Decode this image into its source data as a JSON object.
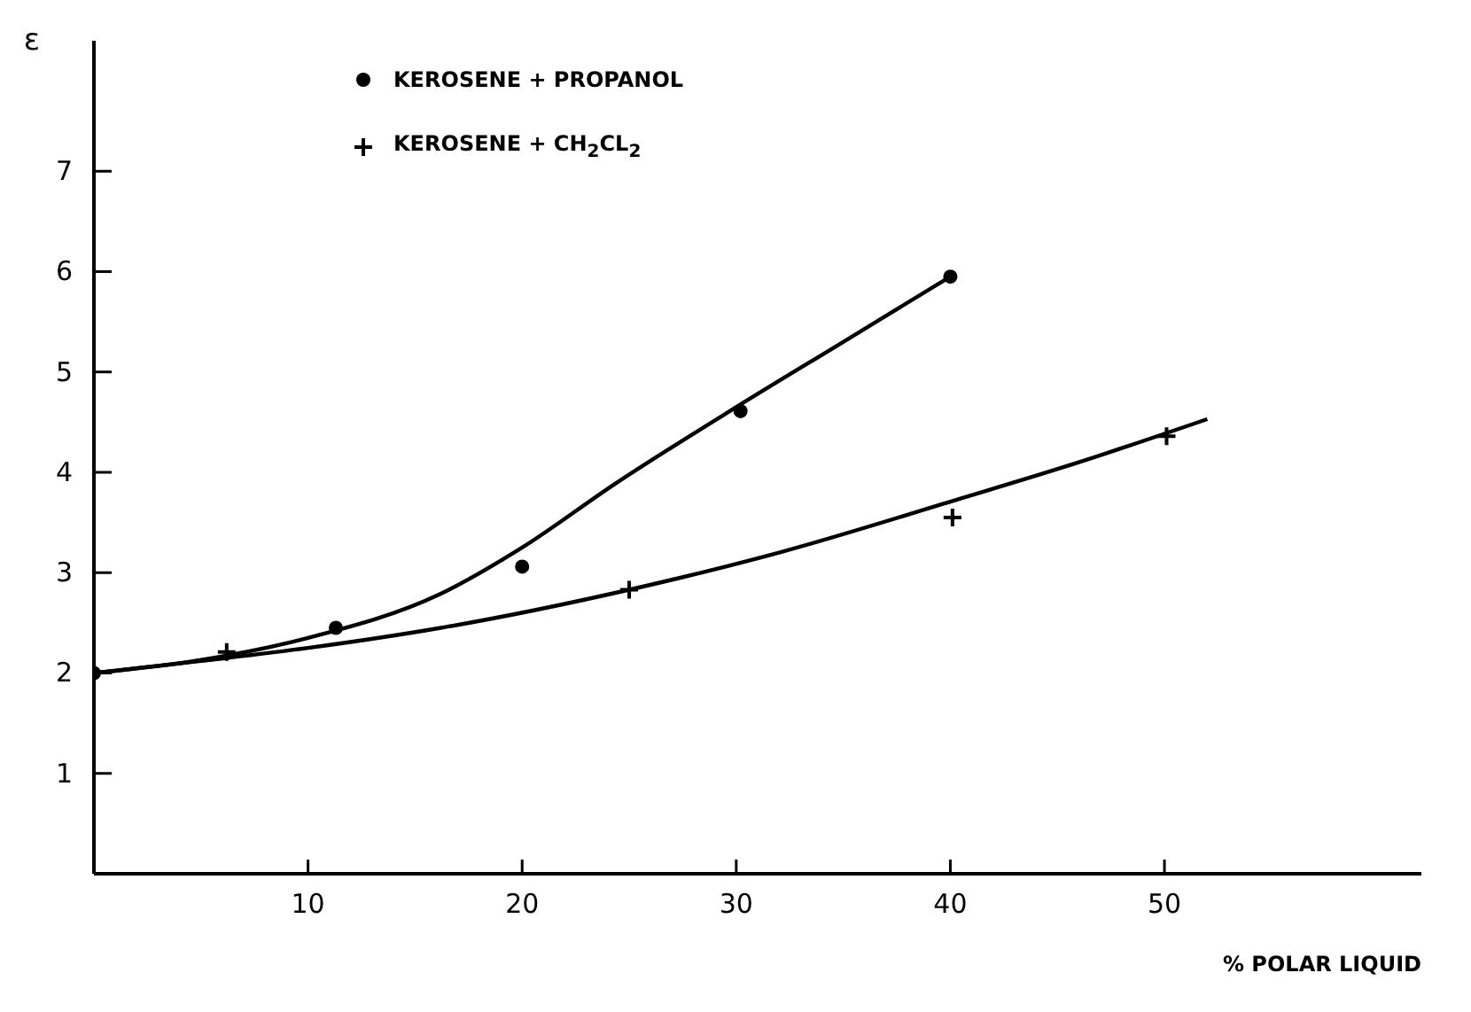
{
  "chart_data": {
    "type": "scatter",
    "xlabel": "% POLAR LIQUID",
    "ylabel": "ε",
    "xlim": [
      0,
      62
    ],
    "ylim": [
      0,
      8.3
    ],
    "xticks": [
      10,
      20,
      30,
      40,
      50
    ],
    "yticks": [
      1,
      2,
      3,
      4,
      5,
      6,
      7
    ],
    "legend": "top left",
    "series": [
      {
        "name": "KEROSENE + PROPANOL",
        "color": "#000000",
        "marker": "circle",
        "x": [
          0,
          11.3,
          20,
          30.2,
          40
        ],
        "values": [
          2.0,
          2.45,
          3.06,
          4.61,
          5.95
        ]
      },
      {
        "name": "KEROSENE + CH$_{2}$CL$_{2}$",
        "color": "#000000",
        "marker": "cross",
        "x": [
          6.2,
          25,
          40.1,
          50.1
        ],
        "values": [
          2.21,
          2.83,
          3.55,
          4.36
        ]
      },
      {
        "color": "#000000",
        "type": "line",
        "marker": "none",
        "x": [
          0,
          5,
          10,
          16.2,
          20,
          24.3,
          30,
          35,
          40
        ],
        "values": [
          2.0,
          2.13,
          2.35,
          2.79,
          3.25,
          3.88,
          4.65,
          5.3,
          5.95
        ]
      },
      {
        "color": "#000000",
        "type": "line",
        "marker": "none",
        "x": [
          0,
          5,
          10,
          16.2,
          25,
          32,
          40.5,
          46,
          52
        ],
        "values": [
          2.0,
          2.12,
          2.25,
          2.45,
          2.83,
          3.2,
          3.74,
          4.1,
          4.53
        ]
      }
    ]
  }
}
